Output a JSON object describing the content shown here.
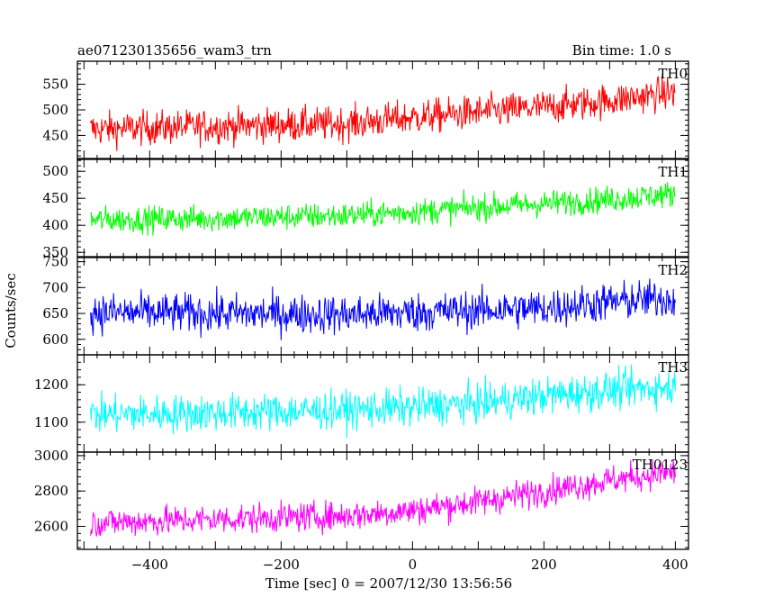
{
  "chart_data": {
    "type": "line",
    "title": "ae071230135656_wam3_trn",
    "subtitle": "Bin time: 1.0 s",
    "xlabel": "Time [sec] 0 = 2007/12/30 13:56:56",
    "ylabel": "Counts/sec",
    "xlim": [
      -510,
      420
    ],
    "x_range": [
      -490,
      400
    ],
    "x_ticks": [
      -400,
      -200,
      0,
      200,
      400
    ],
    "x_tick_labels": [
      "−400",
      "−200",
      "0",
      "200",
      "400"
    ],
    "panels": [
      {
        "name": "TH0",
        "color": "#ff0000",
        "ylim": [
          405,
          595
        ],
        "y_ticks": [
          450,
          500,
          550
        ],
        "y_tick_labels": [
          "450",
          "500",
          "550"
        ],
        "trend": [
          [
            -490,
            462
          ],
          [
            -300,
            468
          ],
          [
            -100,
            473
          ],
          [
            0,
            485
          ],
          [
            100,
            495
          ],
          [
            200,
            505
          ],
          [
            300,
            518
          ],
          [
            400,
            535
          ]
        ],
        "noise_amplitude": 30
      },
      {
        "name": "TH1",
        "color": "#00ff00",
        "ylim": [
          342,
          522
        ],
        "y_ticks": [
          350,
          400,
          450,
          500
        ],
        "y_tick_labels": [
          "350",
          "400",
          "450",
          "500"
        ],
        "trend": [
          [
            -490,
            410
          ],
          [
            -300,
            413
          ],
          [
            -100,
            418
          ],
          [
            0,
            425
          ],
          [
            100,
            433
          ],
          [
            200,
            440
          ],
          [
            300,
            448
          ],
          [
            400,
            458
          ]
        ],
        "noise_amplitude": 22
      },
      {
        "name": "TH2",
        "color": "#0000ff",
        "ylim": [
          570,
          758
        ],
        "y_ticks": [
          600,
          650,
          700,
          750
        ],
        "y_tick_labels": [
          "600",
          "650",
          "700",
          "750"
        ],
        "trend": [
          [
            -490,
            652
          ],
          [
            -300,
            650
          ],
          [
            -100,
            648
          ],
          [
            0,
            652
          ],
          [
            100,
            656
          ],
          [
            200,
            660
          ],
          [
            300,
            672
          ],
          [
            400,
            680
          ]
        ],
        "noise_amplitude": 34
      },
      {
        "name": "TH3",
        "color": "#00ffff",
        "ylim": [
          1020,
          1280
        ],
        "y_ticks": [
          1100,
          1200
        ],
        "y_tick_labels": [
          "1100",
          "1200"
        ],
        "trend": [
          [
            -490,
            1120
          ],
          [
            -300,
            1125
          ],
          [
            -100,
            1132
          ],
          [
            0,
            1140
          ],
          [
            100,
            1150
          ],
          [
            200,
            1170
          ],
          [
            300,
            1185
          ],
          [
            400,
            1195
          ]
        ],
        "noise_amplitude": 45
      },
      {
        "name": "TH0123",
        "color": "#ff00ff",
        "ylim": [
          2470,
          3020
        ],
        "y_ticks": [
          2600,
          2800,
          3000
        ],
        "y_tick_labels": [
          "2600",
          "2800",
          "3000"
        ],
        "trend": [
          [
            -490,
            2620
          ],
          [
            -300,
            2640
          ],
          [
            -100,
            2660
          ],
          [
            0,
            2690
          ],
          [
            100,
            2740
          ],
          [
            200,
            2800
          ],
          [
            300,
            2860
          ],
          [
            400,
            2910
          ]
        ],
        "noise_amplitude": 75
      }
    ],
    "grid": false,
    "legend": "panel labels at top-right of each panel"
  }
}
